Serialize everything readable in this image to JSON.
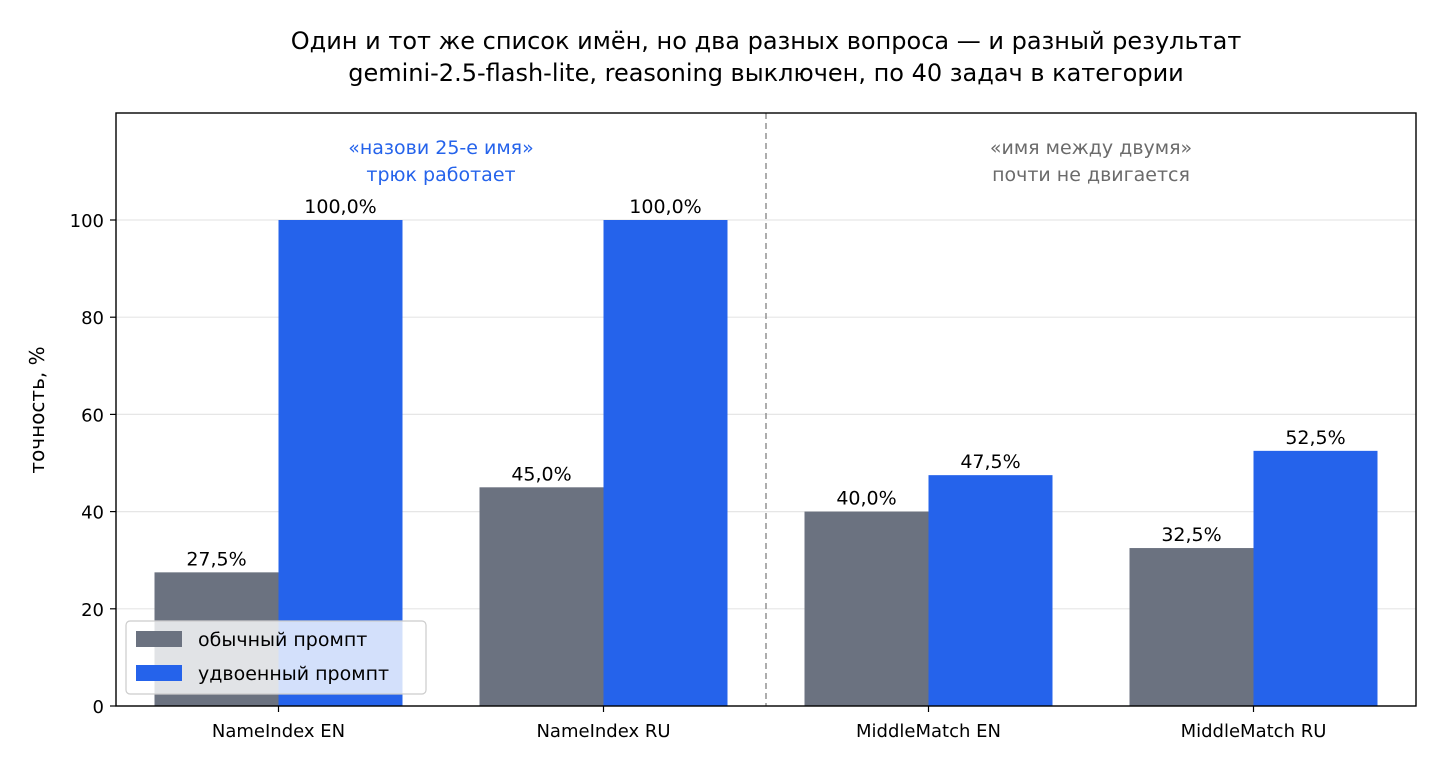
{
  "chart_data": {
    "type": "bar",
    "title": "Один и тот же список имён, но два разных вопроса — и разный результат",
    "subtitle": "gemini-2.5-flash-lite, reasoning выключен, по 40 задач в категории",
    "xlabel": "",
    "ylabel": "точность, %",
    "ylim": [
      0,
      100
    ],
    "yticks": [
      0,
      20,
      40,
      60,
      80,
      100
    ],
    "grid": true,
    "legend_position": "bottom-left",
    "categories": [
      "NameIndex EN",
      "NameIndex RU",
      "MiddleMatch EN",
      "MiddleMatch RU"
    ],
    "series": [
      {
        "name": "обычный промпт",
        "color": "#6b7280",
        "values": [
          27.5,
          45.0,
          40.0,
          32.5
        ],
        "labels": [
          "27,5%",
          "45,0%",
          "40,0%",
          "32,5%"
        ]
      },
      {
        "name": "удвоенный промпт",
        "color": "#2563eb",
        "values": [
          100.0,
          100.0,
          47.5,
          52.5
        ],
        "labels": [
          "100,0%",
          "100,0%",
          "47,5%",
          "52,5%"
        ]
      }
    ],
    "annotations": [
      {
        "lines": [
          "«назови 25-е имя»",
          "трюк работает"
        ],
        "color": "#2563eb",
        "group": "left"
      },
      {
        "lines": [
          "«имя между двумя»",
          "почти не двигается"
        ],
        "color": "#6b6b6b",
        "group": "right"
      }
    ]
  }
}
